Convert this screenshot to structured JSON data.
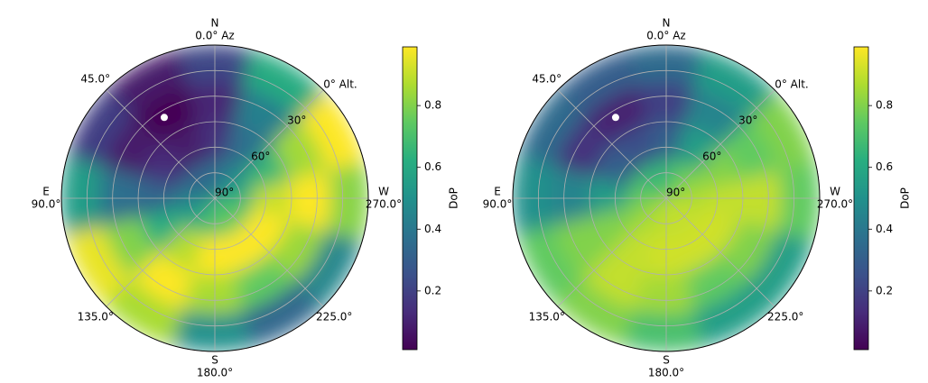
{
  "chart_data": [
    {
      "type": "polar-heatmap",
      "colormap": "viridis",
      "colorbar_label": "DoP",
      "clim": [
        0.01,
        0.99
      ],
      "cticks": [
        0.2,
        0.4,
        0.6,
        0.8
      ],
      "az_ticks": [
        {
          "value": 0,
          "label": "0.0° Az",
          "compass": "N"
        },
        {
          "value": 45,
          "label": "45.0°"
        },
        {
          "value": 90,
          "label": "90.0°",
          "compass": "E"
        },
        {
          "value": 135,
          "label": "135.0°"
        },
        {
          "value": 180,
          "label": "180.0°",
          "compass": "S"
        },
        {
          "value": 225,
          "label": "225.0°"
        },
        {
          "value": 270,
          "label": "270.0°",
          "compass": "W"
        },
        {
          "value": 315,
          "label": null
        }
      ],
      "alt_ticks": [
        {
          "value": 0,
          "label": "0° Alt."
        },
        {
          "value": 30,
          "label": "30°"
        },
        {
          "value": 60,
          "label": "60°"
        },
        {
          "value": 90,
          "label": "90°"
        }
      ],
      "alt_minor_ticks": [
        15,
        45,
        75
      ],
      "azimuths": [
        0,
        30,
        60,
        90,
        120,
        150,
        180,
        210,
        240,
        270,
        300,
        330
      ],
      "altitudes": [
        11.25,
        33.75,
        56.25,
        78.75
      ],
      "values": [
        [
          0.22,
          0.08,
          0.19,
          0.55,
          0.96,
          0.86,
          0.5,
          0.34,
          0.46,
          0.81,
          0.99,
          0.61
        ],
        [
          0.11,
          0.0,
          0.08,
          0.37,
          0.8,
          1.0,
          0.86,
          0.75,
          0.84,
          0.99,
          0.85,
          0.43
        ],
        [
          0.15,
          0.08,
          0.14,
          0.33,
          0.62,
          0.88,
          0.99,
          1.0,
          0.99,
          0.91,
          0.66,
          0.37
        ],
        [
          0.36,
          0.33,
          0.35,
          0.43,
          0.53,
          0.64,
          0.71,
          0.74,
          0.72,
          0.65,
          0.55,
          0.44
        ]
      ],
      "sun": {
        "az": 32,
        "alt": 34,
        "color": "#ffffff"
      }
    },
    {
      "type": "polar-heatmap",
      "colormap": "viridis",
      "colorbar_label": "DoP",
      "clim": [
        0.01,
        0.99
      ],
      "cticks": [
        0.2,
        0.4,
        0.6,
        0.8
      ],
      "az_ticks": [
        {
          "value": 0,
          "label": "0.0° Az",
          "compass": "N"
        },
        {
          "value": 45,
          "label": "45.0°"
        },
        {
          "value": 90,
          "label": "90.0°",
          "compass": "E"
        },
        {
          "value": 135,
          "label": "135.0°"
        },
        {
          "value": 180,
          "label": "180.0°",
          "compass": "S"
        },
        {
          "value": 225,
          "label": "225.0°"
        },
        {
          "value": 270,
          "label": "270.0°",
          "compass": "W"
        },
        {
          "value": 315,
          "label": null
        }
      ],
      "alt_ticks": [
        {
          "value": 0,
          "label": "0° Alt."
        },
        {
          "value": 30,
          "label": "30°"
        },
        {
          "value": 60,
          "label": "60°"
        },
        {
          "value": 90,
          "label": "90°"
        }
      ],
      "alt_minor_ticks": [
        15,
        45,
        75
      ],
      "azimuths": [
        0,
        30,
        60,
        90,
        120,
        150,
        180,
        210,
        240,
        270,
        300,
        330
      ],
      "altitudes": [
        11.25,
        33.75,
        56.25,
        78.75
      ],
      "values": [
        [
          0.35,
          0.3,
          0.35,
          0.5,
          0.75,
          0.8,
          0.7,
          0.55,
          0.55,
          0.75,
          0.8,
          0.55
        ],
        [
          0.2,
          0.1,
          0.15,
          0.45,
          0.8,
          0.9,
          0.85,
          0.75,
          0.8,
          0.9,
          0.75,
          0.45
        ],
        [
          0.3,
          0.25,
          0.3,
          0.55,
          0.8,
          0.9,
          0.92,
          0.92,
          0.92,
          0.9,
          0.8,
          0.55
        ],
        [
          0.65,
          0.65,
          0.7,
          0.75,
          0.82,
          0.87,
          0.9,
          0.9,
          0.9,
          0.87,
          0.82,
          0.75
        ]
      ],
      "sun": {
        "az": 32,
        "alt": 34,
        "color": "#ffffff"
      }
    }
  ]
}
